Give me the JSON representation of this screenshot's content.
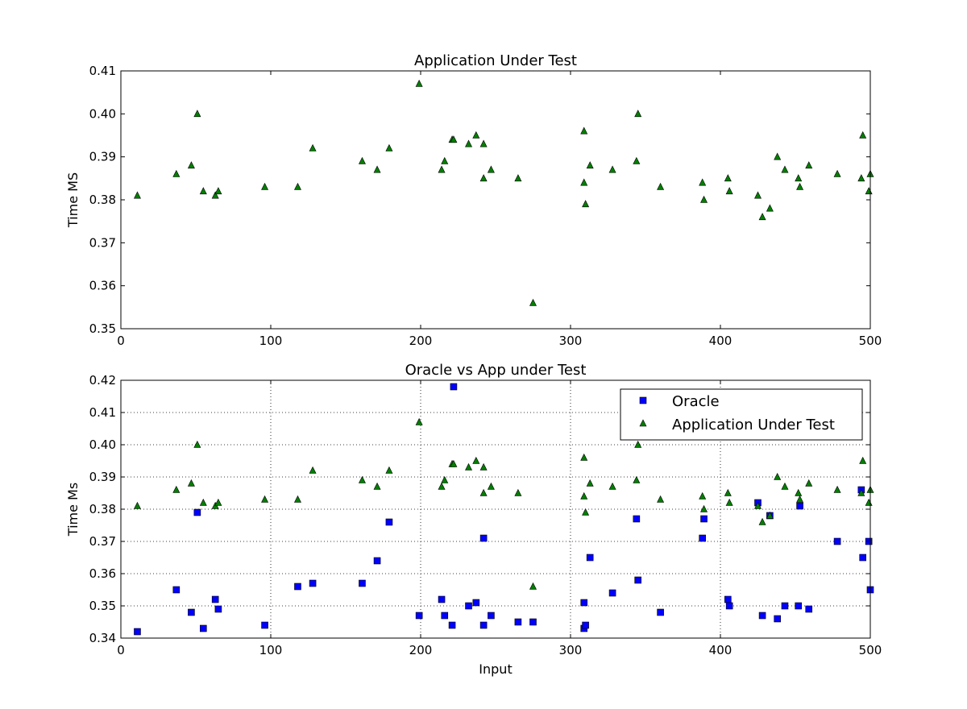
{
  "chart_data": [
    {
      "type": "scatter",
      "title": "Application Under Test",
      "xlabel": "",
      "ylabel": "Time MS",
      "xlim": [
        0,
        500
      ],
      "ylim": [
        0.35,
        0.41
      ],
      "xticks": [
        "0",
        "100",
        "200",
        "300",
        "400",
        "500"
      ],
      "yticks": [
        "0.35",
        "0.36",
        "0.37",
        "0.38",
        "0.39",
        "0.40",
        "0.41"
      ],
      "grid": false,
      "series": [
        {
          "marker": "triangle",
          "color": "#007f00",
          "points": [
            [
              11,
              0.381
            ],
            [
              37,
              0.386
            ],
            [
              47,
              0.388
            ],
            [
              51,
              0.4
            ],
            [
              55,
              0.382
            ],
            [
              63,
              0.381
            ],
            [
              65,
              0.382
            ],
            [
              96,
              0.383
            ],
            [
              118,
              0.383
            ],
            [
              128,
              0.392
            ],
            [
              161,
              0.389
            ],
            [
              171,
              0.387
            ],
            [
              179,
              0.392
            ],
            [
              199,
              0.407
            ],
            [
              214,
              0.387
            ],
            [
              216,
              0.389
            ],
            [
              221,
              0.394
            ],
            [
              222,
              0.394
            ],
            [
              232,
              0.393
            ],
            [
              237,
              0.395
            ],
            [
              242,
              0.393
            ],
            [
              242,
              0.385
            ],
            [
              247,
              0.387
            ],
            [
              265,
              0.385
            ],
            [
              275,
              0.356
            ],
            [
              309,
              0.396
            ],
            [
              309,
              0.384
            ],
            [
              310,
              0.379
            ],
            [
              313,
              0.388
            ],
            [
              328,
              0.387
            ],
            [
              344,
              0.389
            ],
            [
              345,
              0.4
            ],
            [
              360,
              0.383
            ],
            [
              388,
              0.384
            ],
            [
              389,
              0.38
            ],
            [
              405,
              0.385
            ],
            [
              406,
              0.382
            ],
            [
              425,
              0.381
            ],
            [
              428,
              0.376
            ],
            [
              433,
              0.378
            ],
            [
              438,
              0.39
            ],
            [
              443,
              0.387
            ],
            [
              452,
              0.385
            ],
            [
              453,
              0.383
            ],
            [
              459,
              0.388
            ],
            [
              478,
              0.386
            ],
            [
              494,
              0.385
            ],
            [
              495,
              0.395
            ],
            [
              499,
              0.382
            ],
            [
              500,
              0.386
            ]
          ]
        }
      ]
    },
    {
      "type": "scatter",
      "title": "Oracle vs App under Test",
      "xlabel": "Input",
      "ylabel": "Time Ms",
      "xlim": [
        0,
        500
      ],
      "ylim": [
        0.34,
        0.42
      ],
      "xticks": [
        "0",
        "100",
        "200",
        "300",
        "400",
        "500"
      ],
      "yticks": [
        "0.34",
        "0.35",
        "0.36",
        "0.37",
        "0.38",
        "0.39",
        "0.40",
        "0.41",
        "0.42"
      ],
      "grid": true,
      "legend_position": "top-right",
      "series": [
        {
          "name": "Oracle",
          "marker": "square",
          "color": "#0000ff",
          "points": [
            [
              11,
              0.342
            ],
            [
              37,
              0.355
            ],
            [
              47,
              0.348
            ],
            [
              51,
              0.379
            ],
            [
              55,
              0.343
            ],
            [
              63,
              0.352
            ],
            [
              65,
              0.349
            ],
            [
              96,
              0.344
            ],
            [
              118,
              0.356
            ],
            [
              128,
              0.357
            ],
            [
              161,
              0.357
            ],
            [
              171,
              0.364
            ],
            [
              179,
              0.376
            ],
            [
              199,
              0.347
            ],
            [
              214,
              0.352
            ],
            [
              216,
              0.347
            ],
            [
              221,
              0.344
            ],
            [
              222,
              0.418
            ],
            [
              232,
              0.35
            ],
            [
              237,
              0.351
            ],
            [
              242,
              0.344
            ],
            [
              242,
              0.371
            ],
            [
              247,
              0.347
            ],
            [
              265,
              0.345
            ],
            [
              275,
              0.345
            ],
            [
              309,
              0.343
            ],
            [
              309,
              0.351
            ],
            [
              310,
              0.344
            ],
            [
              313,
              0.365
            ],
            [
              328,
              0.354
            ],
            [
              344,
              0.377
            ],
            [
              345,
              0.358
            ],
            [
              360,
              0.348
            ],
            [
              388,
              0.371
            ],
            [
              389,
              0.377
            ],
            [
              405,
              0.352
            ],
            [
              406,
              0.35
            ],
            [
              425,
              0.382
            ],
            [
              428,
              0.347
            ],
            [
              433,
              0.378
            ],
            [
              438,
              0.346
            ],
            [
              443,
              0.35
            ],
            [
              452,
              0.35
            ],
            [
              453,
              0.381
            ],
            [
              459,
              0.349
            ],
            [
              478,
              0.37
            ],
            [
              494,
              0.386
            ],
            [
              495,
              0.365
            ],
            [
              499,
              0.37
            ],
            [
              500,
              0.355
            ]
          ]
        },
        {
          "name": "Application Under Test",
          "marker": "triangle",
          "color": "#007f00",
          "points": [
            [
              11,
              0.381
            ],
            [
              37,
              0.386
            ],
            [
              47,
              0.388
            ],
            [
              51,
              0.4
            ],
            [
              55,
              0.382
            ],
            [
              63,
              0.381
            ],
            [
              65,
              0.382
            ],
            [
              96,
              0.383
            ],
            [
              118,
              0.383
            ],
            [
              128,
              0.392
            ],
            [
              161,
              0.389
            ],
            [
              171,
              0.387
            ],
            [
              179,
              0.392
            ],
            [
              199,
              0.407
            ],
            [
              214,
              0.387
            ],
            [
              216,
              0.389
            ],
            [
              221,
              0.394
            ],
            [
              222,
              0.394
            ],
            [
              232,
              0.393
            ],
            [
              237,
              0.395
            ],
            [
              242,
              0.393
            ],
            [
              242,
              0.385
            ],
            [
              247,
              0.387
            ],
            [
              265,
              0.385
            ],
            [
              275,
              0.356
            ],
            [
              309,
              0.396
            ],
            [
              309,
              0.384
            ],
            [
              310,
              0.379
            ],
            [
              313,
              0.388
            ],
            [
              328,
              0.387
            ],
            [
              344,
              0.389
            ],
            [
              345,
              0.4
            ],
            [
              360,
              0.383
            ],
            [
              388,
              0.384
            ],
            [
              389,
              0.38
            ],
            [
              405,
              0.385
            ],
            [
              406,
              0.382
            ],
            [
              425,
              0.381
            ],
            [
              428,
              0.376
            ],
            [
              433,
              0.378
            ],
            [
              438,
              0.39
            ],
            [
              443,
              0.387
            ],
            [
              452,
              0.385
            ],
            [
              453,
              0.383
            ],
            [
              459,
              0.388
            ],
            [
              478,
              0.386
            ],
            [
              494,
              0.385
            ],
            [
              495,
              0.395
            ],
            [
              499,
              0.382
            ],
            [
              500,
              0.386
            ]
          ]
        }
      ]
    }
  ]
}
